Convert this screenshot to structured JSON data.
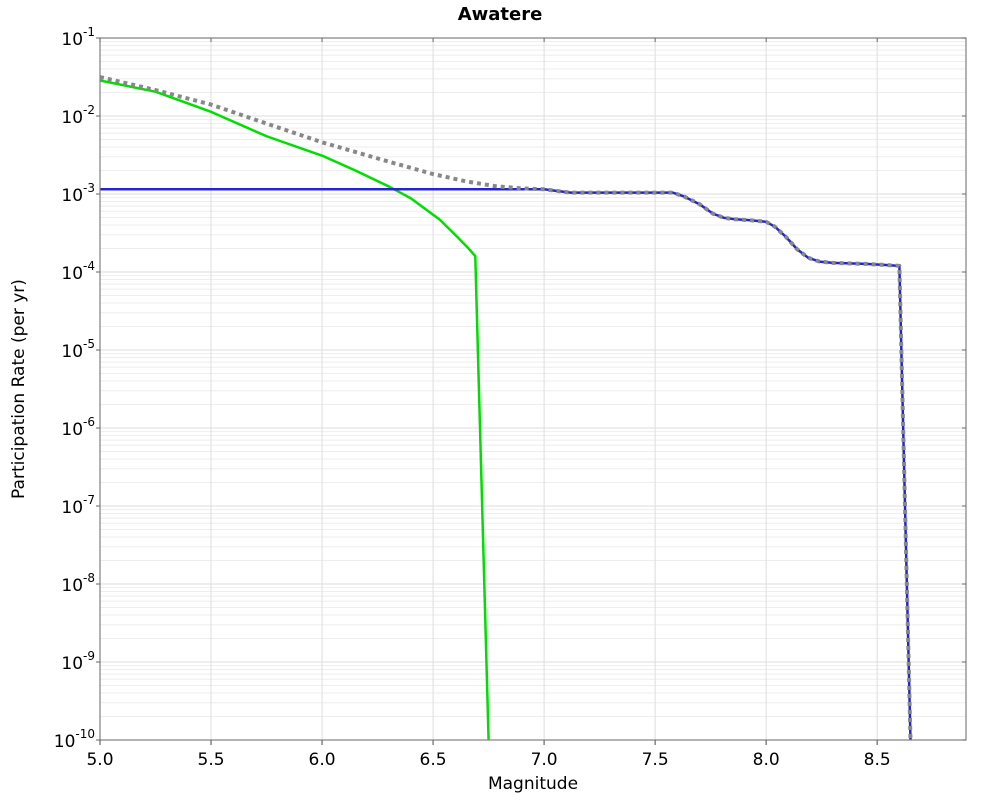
{
  "chart_data": {
    "type": "line",
    "title": "Awatere",
    "xlabel": "Magnitude",
    "ylabel": "Participation Rate (per yr)",
    "x_range": [
      5.0,
      8.9
    ],
    "y_range": [
      1e-10,
      0.1
    ],
    "y_scale": "log10",
    "grid": "horizontal major+minor, vertical major",
    "legend_position": "none",
    "x_ticks": [
      5.0,
      5.5,
      6.0,
      6.5,
      7.0,
      7.5,
      8.0,
      8.5
    ],
    "x_tick_labels": [
      "5.0",
      "5.5",
      "6.0",
      "6.5",
      "7.0",
      "7.5",
      "8.0",
      "8.5"
    ],
    "y_tick_exponents": [
      -1,
      -2,
      -3,
      -4,
      -5,
      -6,
      -7,
      -8,
      -9,
      -10
    ],
    "y_tick_base": "10",
    "colors": {
      "green_line": "#00dd00",
      "blue_line": "#2424d0",
      "gray_dotted_line": "#888888",
      "grid_major": "#dedede",
      "grid_minor": "#eeeeee",
      "frame": "#808080",
      "tick": "#666666"
    },
    "series": [
      {
        "name": "green-line",
        "color": "#00dd00",
        "line_style": "solid",
        "line_width": 2.5,
        "points": [
          [
            5.0,
            0.0285
          ],
          [
            5.25,
            0.0205
          ],
          [
            5.5,
            0.0113
          ],
          [
            5.75,
            0.0055
          ],
          [
            6.0,
            0.0031
          ],
          [
            6.15,
            0.002
          ],
          [
            6.3,
            0.00125
          ],
          [
            6.4,
            0.00088
          ],
          [
            6.53,
            0.00047
          ],
          [
            6.61,
            0.00028
          ],
          [
            6.66,
            0.0002
          ],
          [
            6.69,
            0.00016
          ],
          [
            6.75,
            1e-10
          ]
        ]
      },
      {
        "name": "blue-line",
        "color": "#2424d0",
        "line_style": "solid",
        "line_width": 2.5,
        "points": [
          [
            5.0,
            0.00115
          ],
          [
            7.0,
            0.00115
          ],
          [
            7.05,
            0.0011
          ],
          [
            7.12,
            0.00104
          ],
          [
            7.58,
            0.00104
          ],
          [
            7.63,
            0.00093
          ],
          [
            7.7,
            0.00074
          ],
          [
            7.76,
            0.00056
          ],
          [
            7.81,
            0.000495
          ],
          [
            7.86,
            0.000475
          ],
          [
            7.93,
            0.00046
          ],
          [
            8.0,
            0.00044
          ],
          [
            8.04,
            0.00038
          ],
          [
            8.09,
            0.00028
          ],
          [
            8.14,
            0.000195
          ],
          [
            8.19,
            0.000152
          ],
          [
            8.24,
            0.000136
          ],
          [
            8.3,
            0.000131
          ],
          [
            8.45,
            0.000127
          ],
          [
            8.6,
            0.00012
          ],
          [
            8.65,
            1e-10
          ]
        ]
      },
      {
        "name": "gray-dotted-line",
        "color": "#888888",
        "line_style": "dotted",
        "line_width": 4,
        "points": [
          [
            5.0,
            0.0316
          ],
          [
            5.25,
            0.0215
          ],
          [
            5.5,
            0.014
          ],
          [
            5.75,
            0.008
          ],
          [
            6.0,
            0.0046
          ],
          [
            6.3,
            0.0026
          ],
          [
            6.5,
            0.0018
          ],
          [
            6.65,
            0.00145
          ],
          [
            6.78,
            0.00126
          ],
          [
            6.9,
            0.00118
          ],
          [
            7.0,
            0.00115
          ],
          [
            7.05,
            0.0011
          ],
          [
            7.12,
            0.00104
          ],
          [
            7.58,
            0.00104
          ],
          [
            7.63,
            0.00093
          ],
          [
            7.7,
            0.00074
          ],
          [
            7.76,
            0.00056
          ],
          [
            7.81,
            0.000495
          ],
          [
            7.86,
            0.000475
          ],
          [
            7.93,
            0.00046
          ],
          [
            8.0,
            0.00044
          ],
          [
            8.04,
            0.00038
          ],
          [
            8.09,
            0.00028
          ],
          [
            8.14,
            0.000195
          ],
          [
            8.19,
            0.000152
          ],
          [
            8.24,
            0.000136
          ],
          [
            8.3,
            0.000131
          ],
          [
            8.45,
            0.000127
          ],
          [
            8.6,
            0.00012
          ],
          [
            8.65,
            1e-10
          ]
        ]
      }
    ]
  }
}
